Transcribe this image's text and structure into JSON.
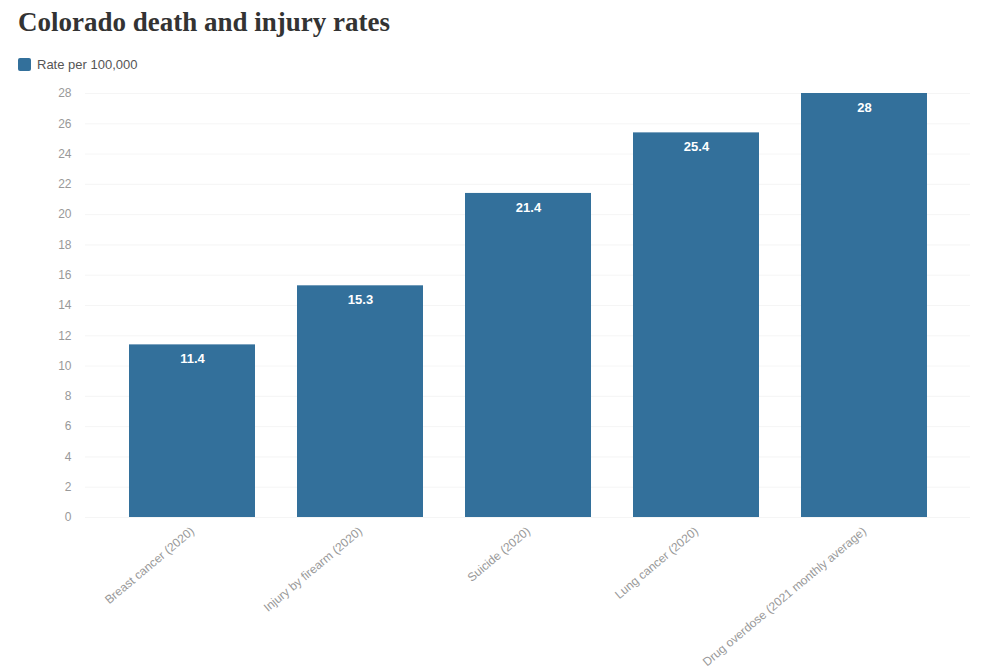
{
  "chart_data": {
    "type": "bar",
    "title": "Colorado death and injury rates",
    "categories": [
      "Breast cancer (2020)",
      "Injury by firearm (2020)",
      "Suicide (2020)",
      "Lung cancer (2020)",
      "Drug overdose (2021 monthly average)"
    ],
    "series": [
      {
        "name": "Rate per 100,000",
        "color": "#33709b",
        "values": [
          11.4,
          15.3,
          21.4,
          25.4,
          28
        ]
      }
    ],
    "ylim": [
      0,
      28
    ],
    "yticks": [
      0,
      2,
      4,
      6,
      8,
      10,
      12,
      14,
      16,
      18,
      20,
      22,
      24,
      26,
      28
    ],
    "grid": true,
    "legend": "top-left",
    "data_labels": true
  }
}
